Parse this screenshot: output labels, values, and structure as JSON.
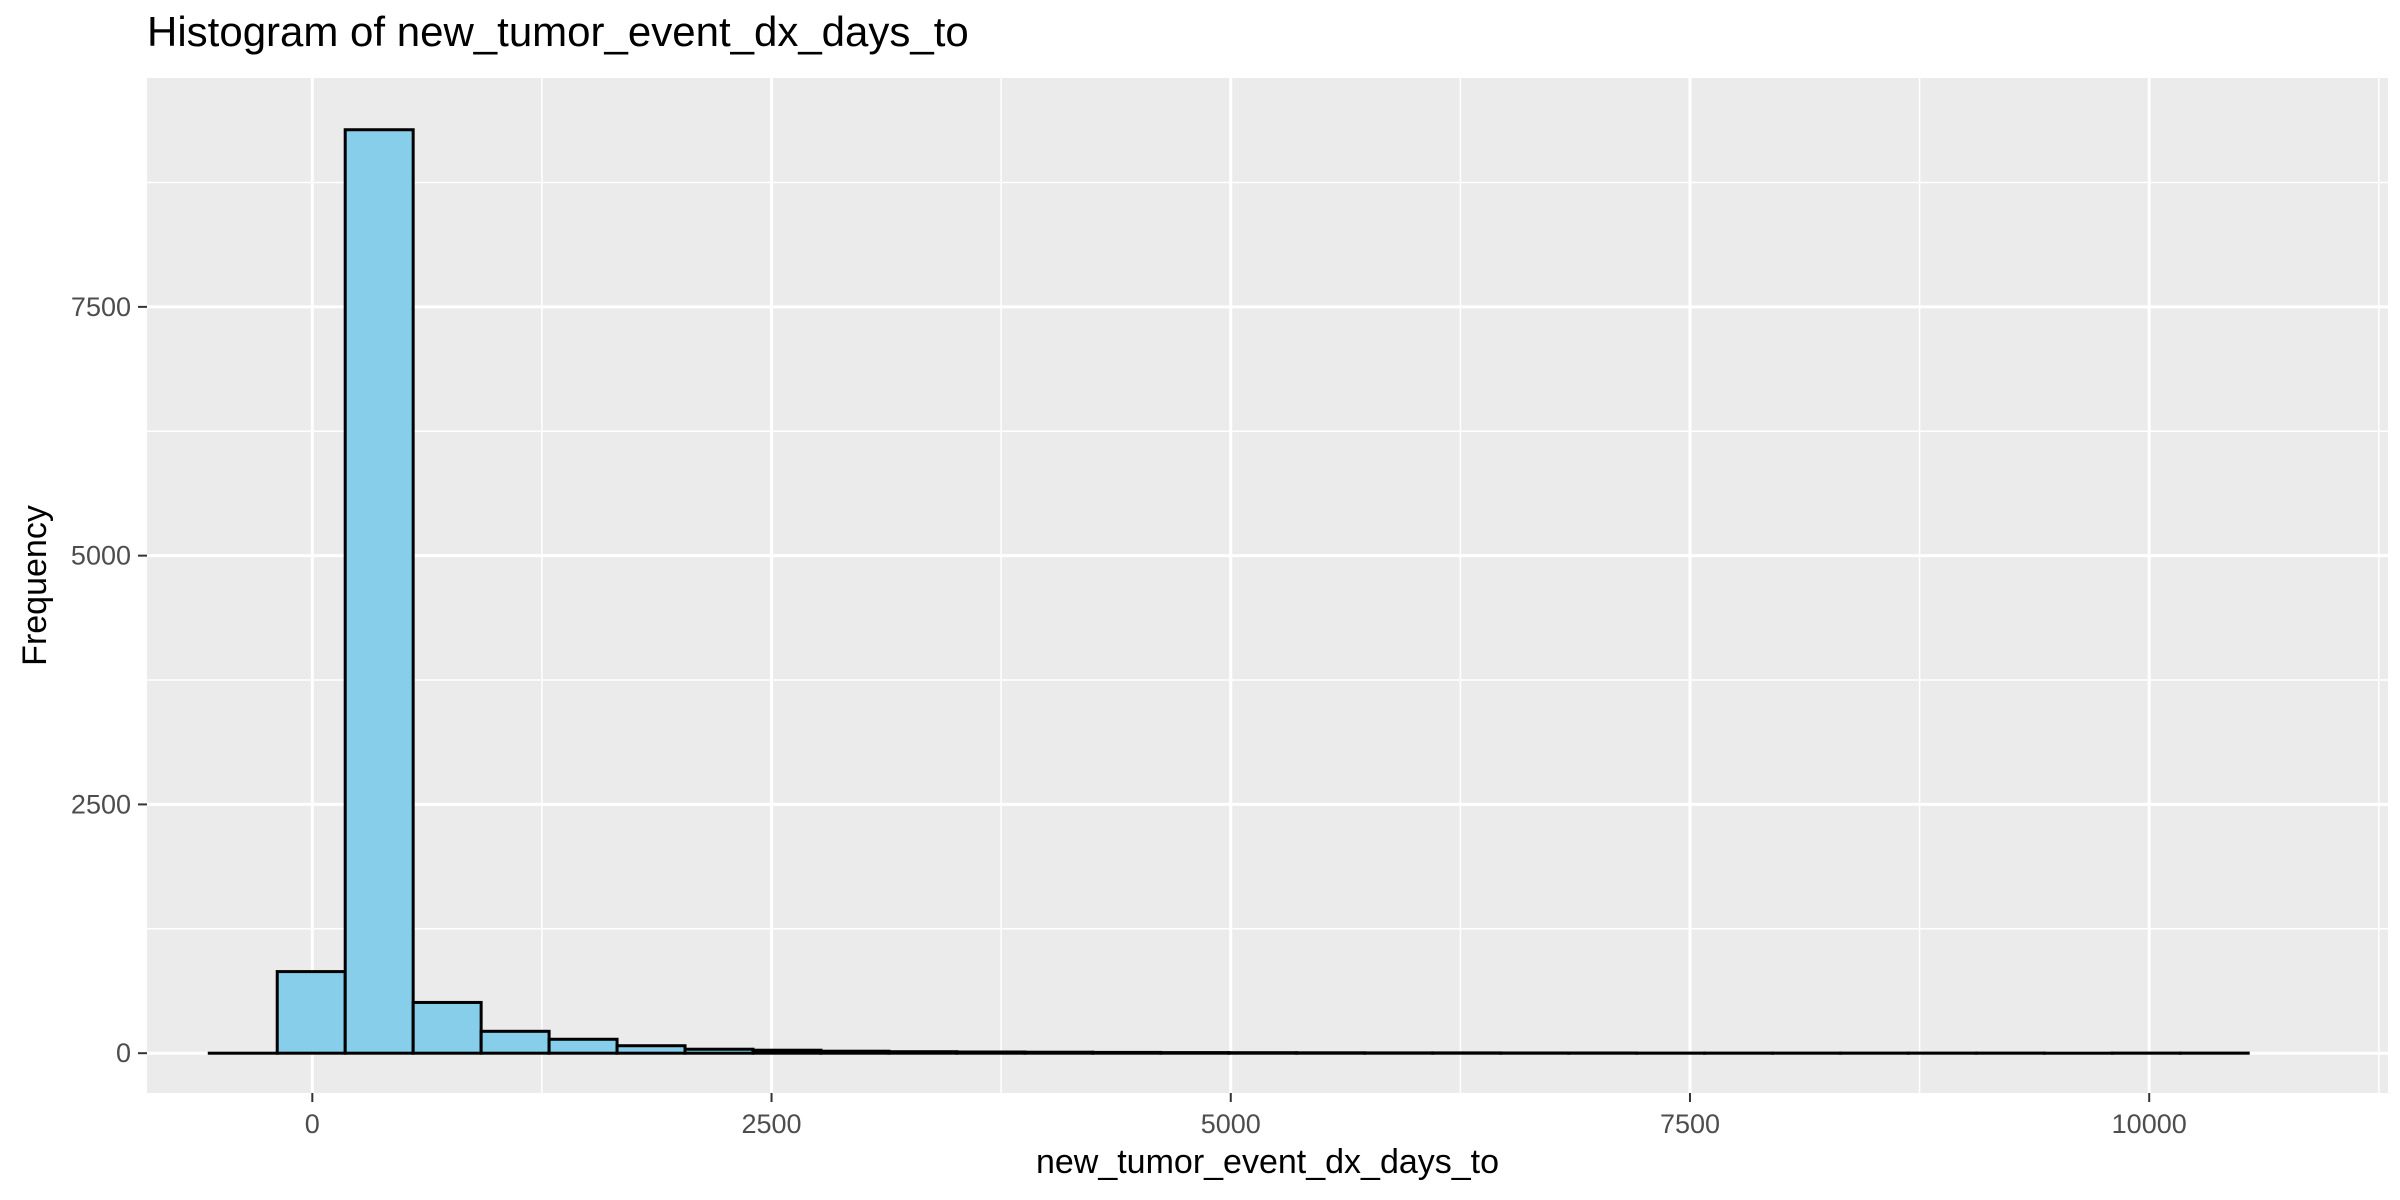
{
  "chart_data": {
    "type": "bar",
    "subtype": "histogram",
    "title": "Histogram of new_tumor_event_dx_days_to",
    "xlabel": "new_tumor_event_dx_days_to",
    "ylabel": "Frequency",
    "xlim": [
      -900,
      11300
    ],
    "ylim": [
      -400,
      9800
    ],
    "x_ticks": [
      0,
      2500,
      5000,
      7500,
      10000
    ],
    "x_tick_labels": [
      "0",
      "2500",
      "5000",
      "7500",
      "10000"
    ],
    "y_ticks": [
      0,
      2500,
      5000,
      7500
    ],
    "y_tick_labels": [
      "0",
      "2500",
      "5000",
      "7500"
    ],
    "grid": true,
    "legend": "none",
    "bar_fill": "#87ceeb",
    "bar_stroke": "#000000",
    "panel_background": "#ebebeb",
    "grid_color": "#ffffff",
    "bins": [
      {
        "x0": -561,
        "x1": -191,
        "count": 0
      },
      {
        "x0": -191,
        "x1": 179,
        "count": 820
      },
      {
        "x0": 179,
        "x1": 549,
        "count": 9280
      },
      {
        "x0": 549,
        "x1": 919,
        "count": 510
      },
      {
        "x0": 919,
        "x1": 1289,
        "count": 220
      },
      {
        "x0": 1289,
        "x1": 1659,
        "count": 140
      },
      {
        "x0": 1659,
        "x1": 2029,
        "count": 75
      },
      {
        "x0": 2029,
        "x1": 2399,
        "count": 40
      },
      {
        "x0": 2399,
        "x1": 2769,
        "count": 30
      },
      {
        "x0": 2769,
        "x1": 3139,
        "count": 20
      },
      {
        "x0": 3139,
        "x1": 3509,
        "count": 15
      },
      {
        "x0": 3509,
        "x1": 3879,
        "count": 12
      },
      {
        "x0": 3879,
        "x1": 4249,
        "count": 10
      },
      {
        "x0": 4249,
        "x1": 4619,
        "count": 8
      },
      {
        "x0": 4619,
        "x1": 4989,
        "count": 6
      },
      {
        "x0": 4989,
        "x1": 5359,
        "count": 5
      },
      {
        "x0": 5359,
        "x1": 5729,
        "count": 4
      },
      {
        "x0": 5729,
        "x1": 6099,
        "count": 3
      },
      {
        "x0": 6099,
        "x1": 6469,
        "count": 3
      },
      {
        "x0": 6469,
        "x1": 6839,
        "count": 2
      },
      {
        "x0": 6839,
        "x1": 7209,
        "count": 2
      },
      {
        "x0": 7209,
        "x1": 7579,
        "count": 1
      },
      {
        "x0": 7579,
        "x1": 7949,
        "count": 1
      },
      {
        "x0": 7949,
        "x1": 8319,
        "count": 1
      },
      {
        "x0": 8319,
        "x1": 8689,
        "count": 1
      },
      {
        "x0": 8689,
        "x1": 9059,
        "count": 1
      },
      {
        "x0": 9059,
        "x1": 9429,
        "count": 1
      },
      {
        "x0": 9429,
        "x1": 9799,
        "count": 0
      },
      {
        "x0": 9799,
        "x1": 10169,
        "count": 1
      },
      {
        "x0": 10169,
        "x1": 10539,
        "count": 1
      }
    ]
  }
}
